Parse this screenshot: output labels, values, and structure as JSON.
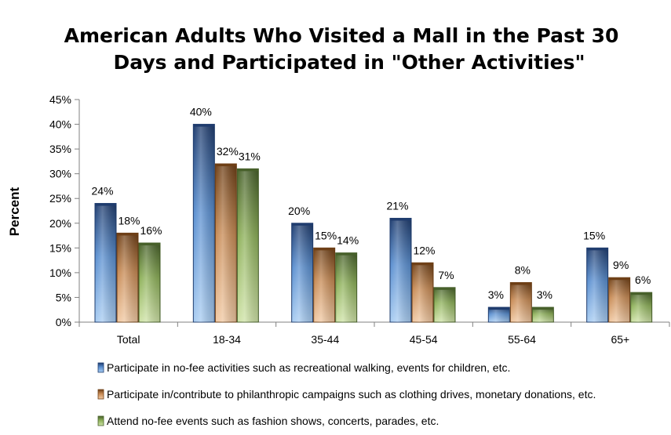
{
  "chart_data": {
    "type": "bar",
    "title_lines": [
      "American Adults Who Visited a Mall in the Past 30",
      "Days and Participated in \"Other Activities\""
    ],
    "ylabel": "Percent",
    "xlabel": "",
    "ylim": [
      0,
      45
    ],
    "y_ticks": [
      "0%",
      "5%",
      "10%",
      "15%",
      "20%",
      "25%",
      "30%",
      "35%",
      "40%",
      "45%"
    ],
    "categories": [
      "Total",
      "18-34",
      "35-44",
      "45-54",
      "55-64",
      "65+"
    ],
    "series": [
      {
        "name": "Participate in no-fee activities such as recreational walking, events for children, etc.",
        "values": [
          24,
          40,
          20,
          21,
          3,
          15
        ],
        "labels": [
          "24%",
          "40%",
          "20%",
          "21%",
          "3%",
          "15%"
        ]
      },
      {
        "name": "Participate in/contribute to philanthropic campaigns such as clothing drives, monetary donations, etc.",
        "values": [
          18,
          32,
          15,
          12,
          8,
          9
        ],
        "labels": [
          "18%",
          "32%",
          "15%",
          "12%",
          "8%",
          "9%"
        ]
      },
      {
        "name": "Attend no-fee events such as fashion shows, concerts, parades, etc.",
        "values": [
          16,
          31,
          14,
          7,
          3,
          6
        ],
        "labels": [
          "16%",
          "31%",
          "14%",
          "7%",
          "3%",
          "6%"
        ]
      }
    ],
    "colors": {
      "series": [
        {
          "light": "#a9cdf2",
          "mid": "#5a8fd0",
          "dark": "#1f3c6e"
        },
        {
          "light": "#f1c9a3",
          "mid": "#c88b55",
          "dark": "#6e3f16"
        },
        {
          "light": "#cfe3a7",
          "mid": "#8eb15a",
          "dark": "#47602a"
        }
      ]
    },
    "grid": false,
    "legend_position": "bottom"
  }
}
